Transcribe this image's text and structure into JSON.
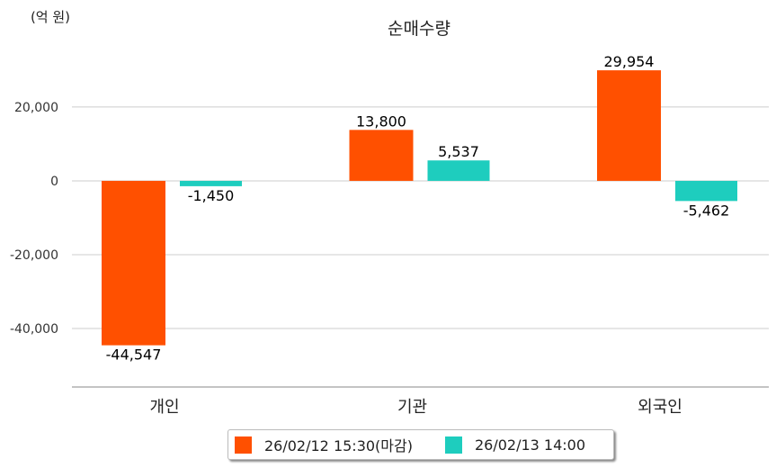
{
  "chart_data": {
    "type": "bar",
    "title": "순매수량",
    "unit_label": "(억 원)",
    "categories": [
      "개인",
      "기관",
      "외국인"
    ],
    "series": [
      {
        "name": "26/02/12 15:30(마감)",
        "color": "#ff5000",
        "values": [
          -44547,
          13800,
          29954
        ],
        "labels": [
          "-44,547",
          "13,800",
          "29,954"
        ]
      },
      {
        "name": "26/02/13 14:00",
        "color": "#1ecdbe",
        "values": [
          -1450,
          5537,
          -5462
        ],
        "labels": [
          "-1,450",
          "5,537",
          "-5,462"
        ]
      }
    ],
    "yticks": [
      20000,
      0,
      -20000,
      -40000
    ],
    "ytick_labels": [
      "20,000",
      "0",
      "-20,000",
      "-40,000"
    ],
    "ylim": [
      -55850,
      49000
    ],
    "grid": true,
    "legend_position": "bottom"
  }
}
